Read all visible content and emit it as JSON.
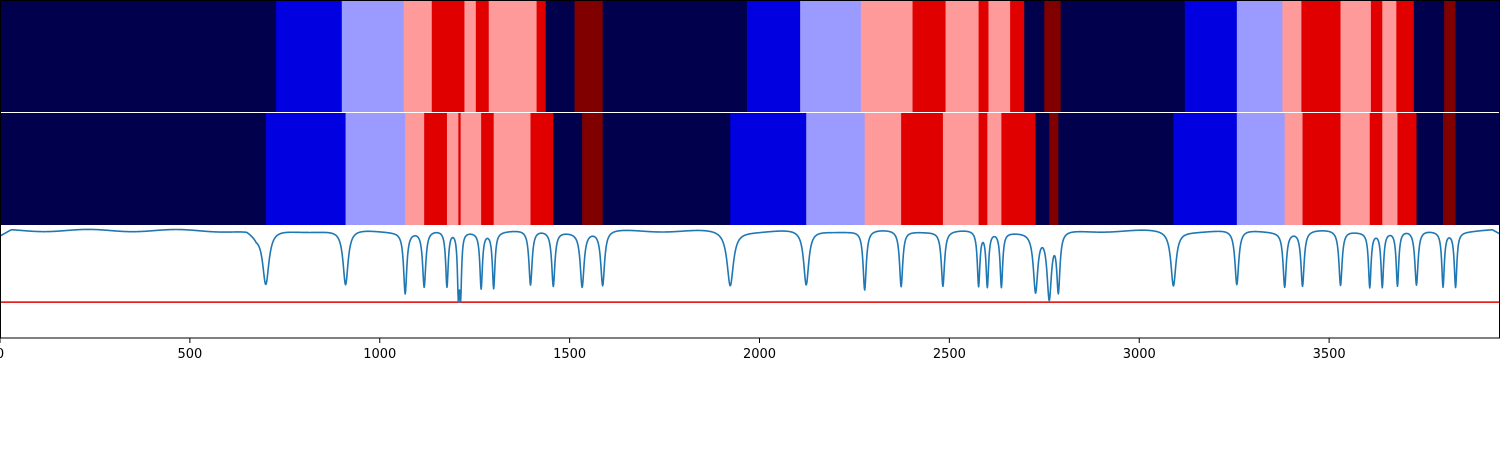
{
  "colors": {
    "segment_colors": {
      "0": "#00004c",
      "1": "#0000e0",
      "2": "#9a9aff",
      "3": "#ff9a9a",
      "4": "#e00000",
      "5": "#800000"
    },
    "signal_line": "#1f77b4",
    "threshold_line": "#e00000",
    "axes_frame": "#000000",
    "panel_divider": "#ffffff"
  },
  "chart_data": {
    "type": "segmentation-track-and-line",
    "x_range": [
      0,
      3950
    ],
    "x_ticks": [
      0,
      500,
      1000,
      1500,
      2000,
      2500,
      3000,
      3500
    ],
    "x_tick_labels": [
      "0",
      "500",
      "1000",
      "1500",
      "2000",
      "2500",
      "3000",
      "3500"
    ],
    "grid": false,
    "legend": "none",
    "tracks": [
      {
        "segments": [
          {
            "start": 0,
            "end": 727,
            "level": 0
          },
          {
            "start": 727,
            "end": 900,
            "level": 1
          },
          {
            "start": 900,
            "end": 1063,
            "level": 2
          },
          {
            "start": 1063,
            "end": 1137,
            "level": 3
          },
          {
            "start": 1137,
            "end": 1223,
            "level": 4
          },
          {
            "start": 1223,
            "end": 1253,
            "level": 3
          },
          {
            "start": 1253,
            "end": 1287,
            "level": 4
          },
          {
            "start": 1287,
            "end": 1413,
            "level": 3
          },
          {
            "start": 1413,
            "end": 1437,
            "level": 4
          },
          {
            "start": 1437,
            "end": 1513,
            "level": 0
          },
          {
            "start": 1513,
            "end": 1587,
            "level": 5
          },
          {
            "start": 1587,
            "end": 1967,
            "level": 0
          },
          {
            "start": 1967,
            "end": 2107,
            "level": 1
          },
          {
            "start": 2107,
            "end": 2267,
            "level": 2
          },
          {
            "start": 2267,
            "end": 2403,
            "level": 3
          },
          {
            "start": 2403,
            "end": 2490,
            "level": 4
          },
          {
            "start": 2490,
            "end": 2577,
            "level": 3
          },
          {
            "start": 2577,
            "end": 2603,
            "level": 4
          },
          {
            "start": 2603,
            "end": 2660,
            "level": 3
          },
          {
            "start": 2660,
            "end": 2697,
            "level": 4
          },
          {
            "start": 2697,
            "end": 2750,
            "level": 0
          },
          {
            "start": 2750,
            "end": 2793,
            "level": 5
          },
          {
            "start": 2793,
            "end": 3120,
            "level": 0
          },
          {
            "start": 3120,
            "end": 3257,
            "level": 1
          },
          {
            "start": 3257,
            "end": 3377,
            "level": 2
          },
          {
            "start": 3377,
            "end": 3427,
            "level": 3
          },
          {
            "start": 3427,
            "end": 3530,
            "level": 4
          },
          {
            "start": 3530,
            "end": 3610,
            "level": 3
          },
          {
            "start": 3610,
            "end": 3640,
            "level": 4
          },
          {
            "start": 3640,
            "end": 3677,
            "level": 3
          },
          {
            "start": 3677,
            "end": 3723,
            "level": 4
          },
          {
            "start": 3723,
            "end": 3803,
            "level": 0
          },
          {
            "start": 3803,
            "end": 3833,
            "level": 5
          },
          {
            "start": 3833,
            "end": 3950,
            "level": 0
          }
        ]
      },
      {
        "segments": [
          {
            "start": 0,
            "end": 700,
            "level": 0
          },
          {
            "start": 700,
            "end": 910,
            "level": 1
          },
          {
            "start": 910,
            "end": 1067,
            "level": 2
          },
          {
            "start": 1067,
            "end": 1117,
            "level": 3
          },
          {
            "start": 1117,
            "end": 1177,
            "level": 4
          },
          {
            "start": 1177,
            "end": 1207,
            "level": 3
          },
          {
            "start": 1207,
            "end": 1213,
            "level": 4
          },
          {
            "start": 1213,
            "end": 1267,
            "level": 3
          },
          {
            "start": 1267,
            "end": 1300,
            "level": 4
          },
          {
            "start": 1300,
            "end": 1397,
            "level": 3
          },
          {
            "start": 1397,
            "end": 1457,
            "level": 4
          },
          {
            "start": 1457,
            "end": 1533,
            "level": 0
          },
          {
            "start": 1533,
            "end": 1587,
            "level": 5
          },
          {
            "start": 1587,
            "end": 1923,
            "level": 0
          },
          {
            "start": 1923,
            "end": 2123,
            "level": 1
          },
          {
            "start": 2123,
            "end": 2277,
            "level": 2
          },
          {
            "start": 2277,
            "end": 2373,
            "level": 3
          },
          {
            "start": 2373,
            "end": 2483,
            "level": 4
          },
          {
            "start": 2483,
            "end": 2577,
            "level": 3
          },
          {
            "start": 2577,
            "end": 2600,
            "level": 4
          },
          {
            "start": 2600,
            "end": 2637,
            "level": 3
          },
          {
            "start": 2637,
            "end": 2727,
            "level": 4
          },
          {
            "start": 2727,
            "end": 2763,
            "level": 0
          },
          {
            "start": 2763,
            "end": 2787,
            "level": 5
          },
          {
            "start": 2787,
            "end": 3090,
            "level": 0
          },
          {
            "start": 3090,
            "end": 3257,
            "level": 1
          },
          {
            "start": 3257,
            "end": 3383,
            "level": 2
          },
          {
            "start": 3383,
            "end": 3430,
            "level": 3
          },
          {
            "start": 3430,
            "end": 3530,
            "level": 4
          },
          {
            "start": 3530,
            "end": 3607,
            "level": 3
          },
          {
            "start": 3607,
            "end": 3640,
            "level": 4
          },
          {
            "start": 3640,
            "end": 3680,
            "level": 3
          },
          {
            "start": 3680,
            "end": 3730,
            "level": 4
          },
          {
            "start": 3730,
            "end": 3800,
            "level": 0
          },
          {
            "start": 3800,
            "end": 3833,
            "level": 5
          },
          {
            "start": 3833,
            "end": 3950,
            "level": 0
          }
        ]
      }
    ],
    "line_series": {
      "y_range": [
        0,
        1
      ],
      "threshold": 0.32,
      "baseline": 0.97,
      "baseline_dip": {
        "from": 650,
        "to": 700,
        "value": 0.92
      },
      "dips": [
        {
          "x": 700,
          "depth": 0.48,
          "width": 10
        },
        {
          "x": 910,
          "depth": 0.48,
          "width": 8
        },
        {
          "x": 1067,
          "depth": 0.42,
          "width": 5
        },
        {
          "x": 1117,
          "depth": 0.47,
          "width": 5
        },
        {
          "x": 1177,
          "depth": 0.47,
          "width": 4
        },
        {
          "x": 1207,
          "depth": 0.45,
          "width": 3
        },
        {
          "x": 1213,
          "depth": 0.45,
          "width": 3
        },
        {
          "x": 1267,
          "depth": 0.47,
          "width": 4
        },
        {
          "x": 1300,
          "depth": 0.47,
          "width": 4
        },
        {
          "x": 1397,
          "depth": 0.48,
          "width": 5
        },
        {
          "x": 1457,
          "depth": 0.48,
          "width": 5
        },
        {
          "x": 1533,
          "depth": 0.48,
          "width": 6
        },
        {
          "x": 1587,
          "depth": 0.48,
          "width": 6
        },
        {
          "x": 1923,
          "depth": 0.48,
          "width": 10
        },
        {
          "x": 2123,
          "depth": 0.48,
          "width": 8
        },
        {
          "x": 2277,
          "depth": 0.44,
          "width": 5
        },
        {
          "x": 2373,
          "depth": 0.47,
          "width": 5
        },
        {
          "x": 2483,
          "depth": 0.48,
          "width": 5
        },
        {
          "x": 2577,
          "depth": 0.48,
          "width": 4
        },
        {
          "x": 2600,
          "depth": 0.48,
          "width": 4
        },
        {
          "x": 2637,
          "depth": 0.48,
          "width": 4
        },
        {
          "x": 2727,
          "depth": 0.44,
          "width": 7
        },
        {
          "x": 2763,
          "depth": 0.38,
          "width": 7
        },
        {
          "x": 2787,
          "depth": 0.45,
          "width": 5
        },
        {
          "x": 3090,
          "depth": 0.48,
          "width": 8
        },
        {
          "x": 3257,
          "depth": 0.48,
          "width": 6
        },
        {
          "x": 3383,
          "depth": 0.48,
          "width": 5
        },
        {
          "x": 3430,
          "depth": 0.48,
          "width": 5
        },
        {
          "x": 3530,
          "depth": 0.48,
          "width": 5
        },
        {
          "x": 3607,
          "depth": 0.48,
          "width": 4
        },
        {
          "x": 3640,
          "depth": 0.48,
          "width": 4
        },
        {
          "x": 3680,
          "depth": 0.48,
          "width": 4
        },
        {
          "x": 3730,
          "depth": 0.48,
          "width": 5
        },
        {
          "x": 3800,
          "depth": 0.48,
          "width": 4
        },
        {
          "x": 3833,
          "depth": 0.48,
          "width": 4
        }
      ]
    }
  }
}
